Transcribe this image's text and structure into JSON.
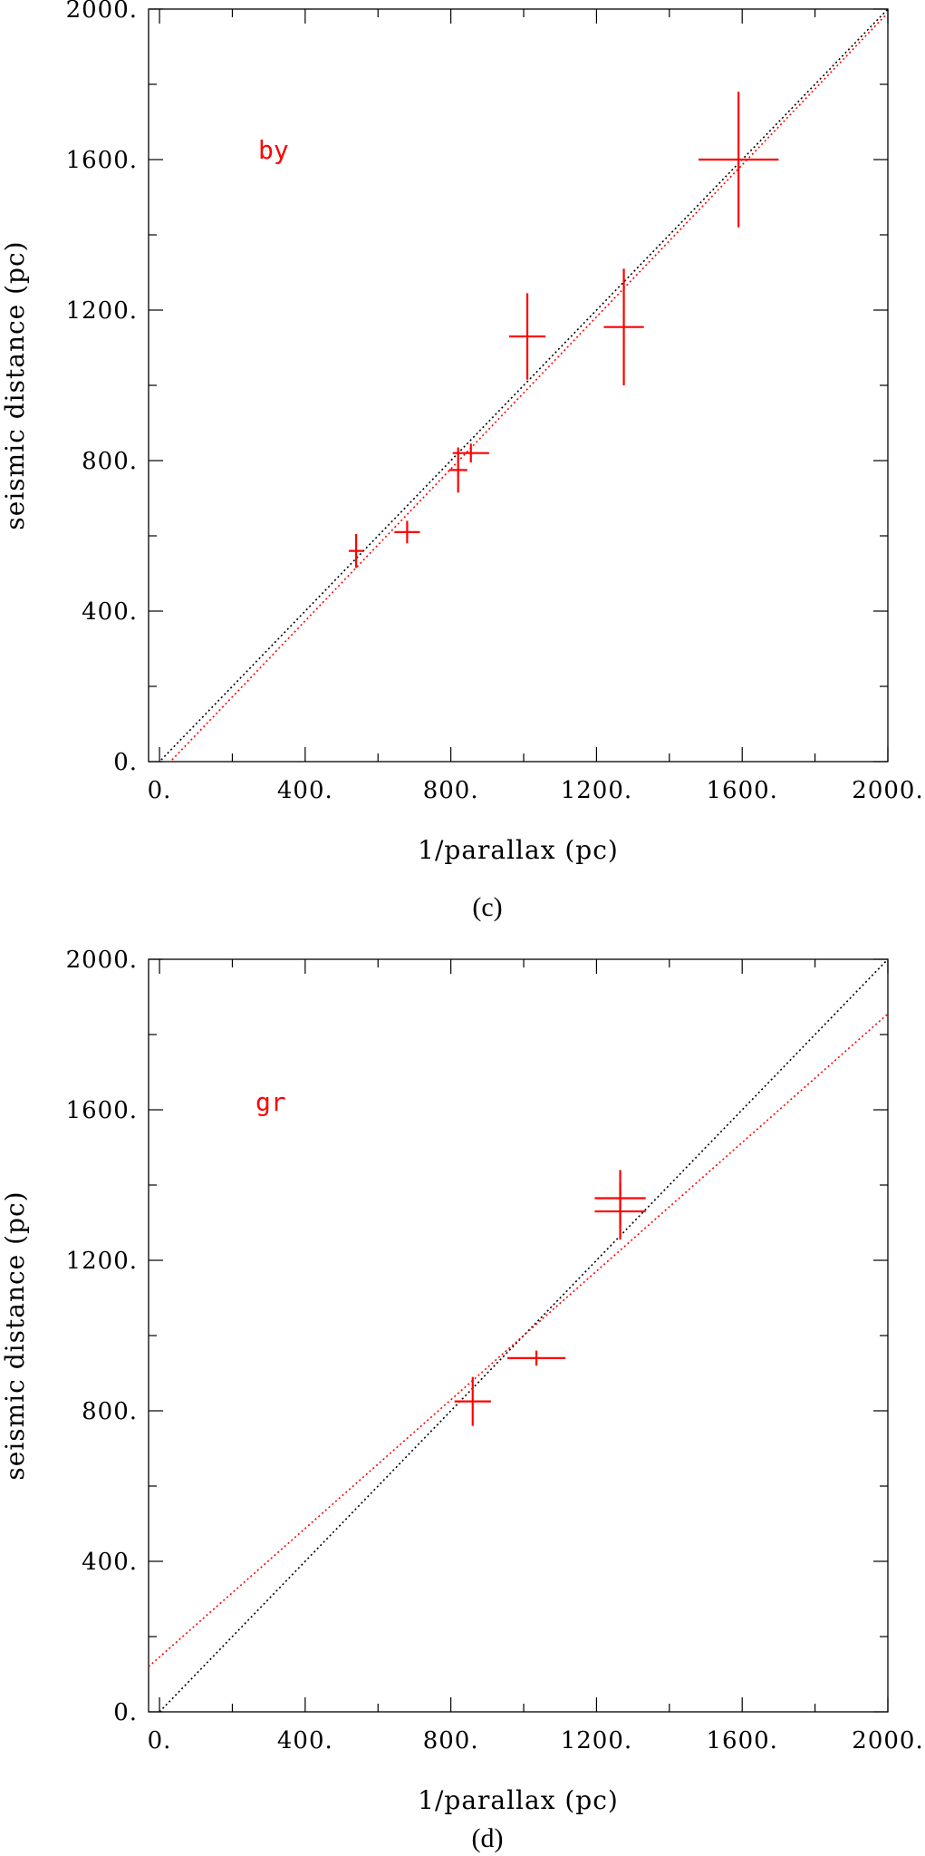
{
  "colors": {
    "data": "#ff0000",
    "identity_line": "#000000",
    "fit_line": "#ff0000"
  },
  "chart_data": [
    {
      "type": "scatter",
      "caption": "(c)",
      "label": "by",
      "xlabel": "1/parallax (pc)",
      "ylabel": "seismic distance (pc)",
      "xlim": [
        -30,
        2000
      ],
      "ylim": [
        0,
        2000
      ],
      "xticks": [
        0,
        400,
        800,
        1200,
        1600,
        2000
      ],
      "yticks": [
        0,
        400,
        800,
        1200,
        1600,
        2000
      ],
      "xtick_labels": [
        "0.",
        "400.",
        "800.",
        "1200.",
        "1600.",
        "2000."
      ],
      "ytick_labels": [
        "0.",
        "400.",
        "800.",
        "1200.",
        "1600.",
        "2000."
      ],
      "minor_tick_step": 200,
      "points": [
        {
          "x": 540,
          "y": 560,
          "xerr": 20,
          "yerr": 45
        },
        {
          "x": 680,
          "y": 610,
          "xerr": 35,
          "yerr": 30
        },
        {
          "x": 820,
          "y": 775,
          "xerr": 25,
          "yerr": 60
        },
        {
          "x": 855,
          "y": 820,
          "xerr": 50,
          "yerr": 25
        },
        {
          "x": 1010,
          "y": 1130,
          "xerr": 50,
          "yerr": 115
        },
        {
          "x": 1275,
          "y": 1155,
          "xerr": 55,
          "yerr": 155
        },
        {
          "x": 1590,
          "y": 1600,
          "xerr": 110,
          "yerr": 180
        }
      ],
      "reference_lines": [
        {
          "kind": "identity",
          "x0": -30,
          "y0": -30,
          "x1": 2000,
          "y1": 2000
        },
        {
          "kind": "fit",
          "x0": 0,
          "y0": -30,
          "x1": 2000,
          "y1": 1990
        }
      ]
    },
    {
      "type": "scatter",
      "caption": "(d)",
      "label": "gr",
      "xlabel": "1/parallax (pc)",
      "ylabel": "seismic distance (pc)",
      "xlim": [
        -30,
        2000
      ],
      "ylim": [
        0,
        2000
      ],
      "xticks": [
        0,
        400,
        800,
        1200,
        1600,
        2000
      ],
      "yticks": [
        0,
        400,
        800,
        1200,
        1600,
        2000
      ],
      "xtick_labels": [
        "0.",
        "400.",
        "800.",
        "1200.",
        "1600.",
        "2000."
      ],
      "ytick_labels": [
        "0.",
        "400.",
        "800.",
        "1200.",
        "1600.",
        "2000."
      ],
      "minor_tick_step": 200,
      "points": [
        {
          "x": 860,
          "y": 825,
          "xerr": 50,
          "yerr": 65
        },
        {
          "x": 1035,
          "y": 940,
          "xerr": 80,
          "yerr": 20
        },
        {
          "x": 1265,
          "y": 1365,
          "xerr": 70,
          "yerr": 75
        },
        {
          "x": 1265,
          "y": 1330,
          "xerr": 70,
          "yerr": 75
        }
      ],
      "reference_lines": [
        {
          "kind": "identity",
          "x0": 0,
          "y0": 0,
          "x1": 2000,
          "y1": 2000
        },
        {
          "kind": "fit",
          "x0": -30,
          "y0": 120,
          "x1": 2000,
          "y1": 1855
        }
      ]
    }
  ]
}
